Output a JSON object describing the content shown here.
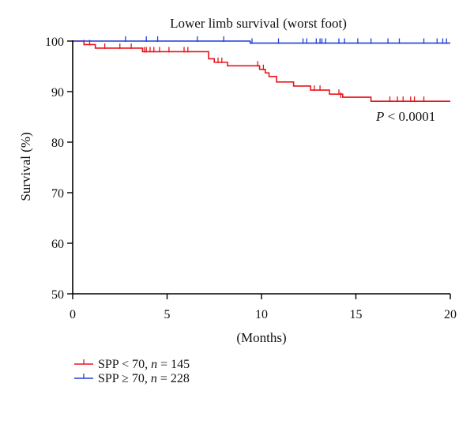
{
  "chart_data": {
    "type": "line",
    "title": "Lower limb survival (worst foot)",
    "xlabel": "(Months)",
    "ylabel": "Survival (%)",
    "xlim": [
      0,
      20
    ],
    "ylim": [
      50,
      100
    ],
    "xticks": [
      0,
      5,
      10,
      15,
      20
    ],
    "yticks": [
      50,
      60,
      70,
      80,
      90,
      100
    ],
    "annotation": {
      "italic": "P",
      "text": " < 0.0001"
    },
    "series": [
      {
        "name": "SPP < 70, n = 145",
        "label_parts": [
          "SPP < 70, ",
          "n",
          " = 145"
        ],
        "color": "#e8141b",
        "steps": [
          [
            0,
            100
          ],
          [
            0.6,
            99.3
          ],
          [
            1.2,
            98.6
          ],
          [
            3.7,
            97.9
          ],
          [
            7.2,
            96.5
          ],
          [
            7.5,
            95.8
          ],
          [
            8.2,
            95.1
          ],
          [
            9.9,
            94.4
          ],
          [
            10.2,
            93.7
          ],
          [
            10.4,
            93.0
          ],
          [
            10.8,
            91.9
          ],
          [
            11.7,
            91.1
          ],
          [
            12.6,
            90.3
          ],
          [
            13.6,
            89.5
          ],
          [
            14.3,
            88.9
          ],
          [
            15.8,
            88.1
          ],
          [
            20,
            88.1
          ]
        ],
        "censored": [
          [
            0.6,
            99.3
          ],
          [
            0.9,
            99.3
          ],
          [
            1.7,
            98.6
          ],
          [
            2.5,
            98.6
          ],
          [
            3.1,
            98.6
          ],
          [
            3.8,
            97.9
          ],
          [
            3.9,
            97.9
          ],
          [
            4.1,
            97.9
          ],
          [
            4.3,
            97.9
          ],
          [
            4.6,
            97.9
          ],
          [
            5.1,
            97.9
          ],
          [
            5.9,
            97.9
          ],
          [
            6.1,
            97.9
          ],
          [
            7.7,
            95.8
          ],
          [
            7.9,
            95.8
          ],
          [
            9.8,
            95.1
          ],
          [
            10.1,
            94.4
          ],
          [
            12.8,
            90.3
          ],
          [
            13.1,
            90.3
          ],
          [
            14.1,
            89.5
          ],
          [
            14.2,
            88.9
          ],
          [
            16.8,
            88.1
          ],
          [
            17.2,
            88.1
          ],
          [
            17.5,
            88.1
          ],
          [
            17.9,
            88.1
          ],
          [
            18.1,
            88.1
          ],
          [
            18.6,
            88.1
          ]
        ]
      },
      {
        "name": "SPP ≥ 70, n = 228",
        "label_parts": [
          "SPP ≥ 70, ",
          "n",
          " = 228"
        ],
        "color": "#1f3fd6",
        "steps": [
          [
            0,
            100
          ],
          [
            9.4,
            99.6
          ],
          [
            20,
            99.6
          ]
        ],
        "censored": [
          [
            2.8,
            100
          ],
          [
            3.9,
            100
          ],
          [
            4.5,
            100
          ],
          [
            6.6,
            100
          ],
          [
            8.0,
            100
          ],
          [
            9.5,
            99.6
          ],
          [
            10.9,
            99.6
          ],
          [
            12.2,
            99.6
          ],
          [
            12.4,
            99.6
          ],
          [
            12.9,
            99.6
          ],
          [
            13.1,
            99.6
          ],
          [
            13.2,
            99.6
          ],
          [
            13.4,
            99.6
          ],
          [
            14.1,
            99.6
          ],
          [
            14.4,
            99.6
          ],
          [
            15.1,
            99.6
          ],
          [
            15.8,
            99.6
          ],
          [
            16.7,
            99.6
          ],
          [
            17.3,
            99.6
          ],
          [
            18.6,
            99.6
          ],
          [
            19.3,
            99.6
          ],
          [
            19.6,
            99.6
          ],
          [
            19.8,
            99.6
          ]
        ]
      }
    ]
  }
}
